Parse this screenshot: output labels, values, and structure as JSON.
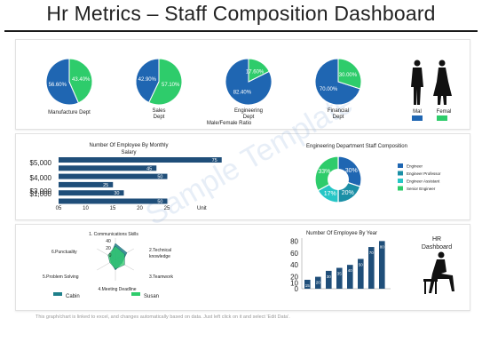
{
  "page": {
    "title": "Hr Metrics – Staff Composition Dashboard"
  },
  "colors": {
    "blue": "#1f66b2",
    "green": "#2ecc6b",
    "navy": "#1f4e79",
    "teal": "#1b8fa6",
    "cyan": "#27c6c6"
  },
  "pies": {
    "items": [
      {
        "label": "Manufacture Dept",
        "values": [
          56.6,
          43.4
        ],
        "labels": [
          "56.60%",
          "43.40%"
        ]
      },
      {
        "label": "Sales Dept",
        "values": [
          42.9,
          57.1
        ],
        "labels": [
          "42.90%",
          "57.10%"
        ]
      },
      {
        "label": "Engineering Dept",
        "values": [
          82.4,
          17.6
        ],
        "labels": [
          "82.40%",
          "17.60%"
        ]
      },
      {
        "label": "Financial Dept",
        "values": [
          70.0,
          30.0
        ],
        "labels": [
          "70.00%",
          "30.00%"
        ]
      }
    ],
    "ratio_caption": "Male/Female Ratio"
  },
  "gender_legend": {
    "male": "Mal",
    "female": "Femal"
  },
  "bar_panel": {
    "title": "Number Of Employee By Monthly Salary",
    "unit_label": "Unit",
    "y_labels": [
      "$5,000",
      "$4,000",
      "$3,000",
      "$1,000"
    ],
    "x_ticks": [
      "05",
      "10",
      "15",
      "20",
      "25"
    ]
  },
  "donut_panel": {
    "title": "Engineering Department Staff Composition",
    "legend": [
      "Engineer",
      "Engineer Professor",
      "Engineer Assistant",
      "Senior Engineer"
    ]
  },
  "radar_panel": {
    "axes": [
      "1. Communications Skills",
      "2.Technical knowledge",
      "3.Teamwork",
      "4.Meeting Deadline",
      "5.Problem Solving",
      "6.Punctuality"
    ],
    "ticks": [
      "40",
      "20",
      "0"
    ],
    "legend": [
      "Cabin",
      "Susan"
    ]
  },
  "year_panel": {
    "title": "Number Of Employee By Year",
    "side_label": "HR Dashboard"
  },
  "footer_note": "This graph/chart is linked to excel, and changes automatically based on data. Just left click on it and select 'Edit Data'.",
  "watermark": "Sample Template",
  "chart_data": [
    {
      "type": "pie",
      "title": "Male/Female Ratio",
      "categories": [
        "Manufacture Dept",
        "Sales Dept",
        "Engineering Dept",
        "Financial Dept"
      ],
      "series": [
        {
          "name": "Mal",
          "values": [
            56.6,
            42.9,
            82.4,
            70.0
          ]
        },
        {
          "name": "Femal",
          "values": [
            43.4,
            57.1,
            17.6,
            30.0
          ]
        }
      ]
    },
    {
      "type": "bar",
      "orientation": "horizontal",
      "title": "Number Of Employee By Monthly Salary",
      "xlabel": "Unit",
      "bars": [
        {
          "value": 75,
          "label": "75"
        },
        {
          "value": 45,
          "label": "45"
        },
        {
          "value": 50,
          "label": "50"
        },
        {
          "value": 25,
          "label": "25"
        },
        {
          "value": 30,
          "label": "30"
        },
        {
          "value": 50,
          "label": "50"
        }
      ],
      "xlim": [
        0,
        80
      ]
    },
    {
      "type": "pie",
      "subtype": "donut",
      "title": "Engineering Department Staff Composition",
      "categories": [
        "Engineer",
        "Engineer Professor",
        "Engineer Assistant",
        "Senior Engineer"
      ],
      "values": [
        30,
        20,
        17,
        33
      ],
      "labels": [
        "30%",
        "20%",
        "17%",
        "33%"
      ]
    },
    {
      "type": "radar",
      "categories": [
        "1. Communications Skills",
        "2.Technical knowledge",
        "3.Teamwork",
        "4.Meeting Deadline",
        "5.Problem Solving",
        "6.Punctuality"
      ],
      "series": [
        {
          "name": "Cabin",
          "values": [
            30,
            25,
            14,
            20,
            10,
            12
          ]
        },
        {
          "name": "Susan",
          "values": [
            25,
            20,
            20,
            18,
            12,
            16
          ]
        }
      ],
      "rlim": [
        0,
        40
      ]
    },
    {
      "type": "bar",
      "title": "Number Of Employee By Year",
      "values": [
        15,
        20,
        30,
        35,
        40,
        50,
        70,
        80
      ],
      "labels": [
        "15",
        "20",
        "30",
        "35",
        "40",
        "50",
        "70",
        "80"
      ],
      "yticks": [
        0,
        10,
        20,
        40,
        60,
        80
      ],
      "ylim": [
        0,
        85
      ]
    }
  ]
}
